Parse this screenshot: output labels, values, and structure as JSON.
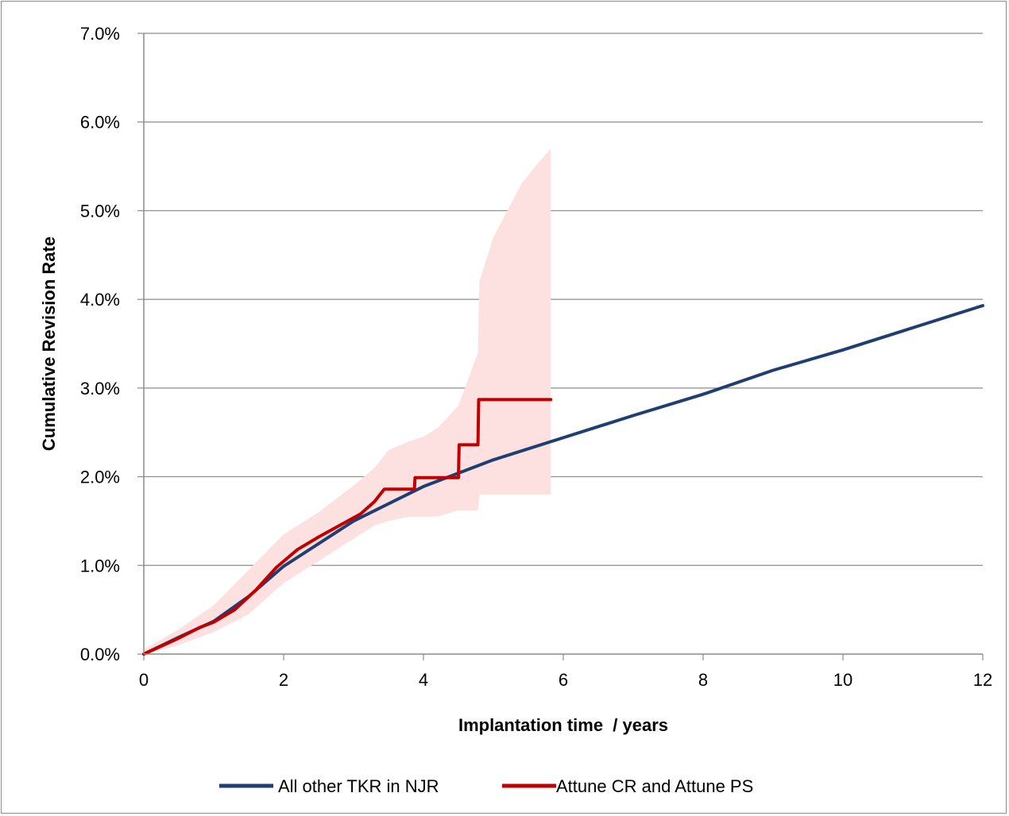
{
  "chart_data": {
    "type": "line",
    "title": "",
    "xlabel": "Implantation time  / years",
    "ylabel": "Cumulative Revision Rate",
    "xlim": [
      0,
      12
    ],
    "ylim": [
      0,
      7
    ],
    "x_ticks": [
      0,
      2,
      4,
      6,
      8,
      10,
      12
    ],
    "x_tick_labels": [
      "0",
      "2",
      "4",
      "6",
      "8",
      "10",
      "12"
    ],
    "y_ticks": [
      0,
      1,
      2,
      3,
      4,
      5,
      6,
      7
    ],
    "y_tick_labels": [
      "0.0%",
      "1.0%",
      "2.0%",
      "3.0%",
      "4.0%",
      "5.0%",
      "6.0%",
      "7.0%"
    ],
    "grid": "horizontal",
    "legend_position": "bottom",
    "series": [
      {
        "name": "All other TKR in NJR",
        "color": "#1f3f73",
        "x": [
          0,
          0.5,
          1.0,
          1.5,
          2.0,
          3.0,
          4.0,
          5.0,
          6.0,
          7.0,
          8.0,
          9.0,
          10.0,
          11.0,
          12.0
        ],
        "y": [
          0.0,
          0.19,
          0.37,
          0.65,
          0.99,
          1.5,
          1.89,
          2.19,
          2.44,
          2.69,
          2.93,
          3.2,
          3.43,
          3.68,
          3.93
        ]
      },
      {
        "name": "Attune CR and Attune PS",
        "color": "#c00000",
        "x": [
          0,
          0.5,
          0.8,
          1.0,
          1.3,
          1.6,
          1.9,
          2.2,
          2.5,
          2.8,
          3.1,
          3.3,
          3.44,
          3.87,
          3.88,
          4.5,
          4.51,
          4.78,
          4.79,
          5.82
        ],
        "y": [
          0.0,
          0.18,
          0.3,
          0.36,
          0.5,
          0.72,
          0.98,
          1.18,
          1.32,
          1.45,
          1.58,
          1.72,
          1.86,
          1.86,
          1.99,
          1.99,
          2.36,
          2.36,
          2.87,
          2.87
        ],
        "ci_band": {
          "color": "#fde0e0",
          "x": [
            0,
            0.5,
            1.0,
            1.5,
            2.0,
            2.5,
            3.0,
            3.3,
            3.5,
            3.8,
            4.0,
            4.2,
            4.5,
            4.78,
            4.8,
            5.0,
            5.2,
            5.4,
            5.6,
            5.82
          ],
          "upper": [
            0.05,
            0.28,
            0.55,
            0.95,
            1.35,
            1.6,
            1.9,
            2.1,
            2.3,
            2.4,
            2.45,
            2.55,
            2.8,
            3.4,
            4.2,
            4.7,
            5.0,
            5.3,
            5.5,
            5.7
          ],
          "lower": [
            0.0,
            0.1,
            0.25,
            0.45,
            0.8,
            1.05,
            1.3,
            1.45,
            1.5,
            1.55,
            1.55,
            1.55,
            1.62,
            1.62,
            1.8,
            1.8,
            1.8,
            1.8,
            1.8,
            1.8
          ]
        }
      }
    ]
  }
}
